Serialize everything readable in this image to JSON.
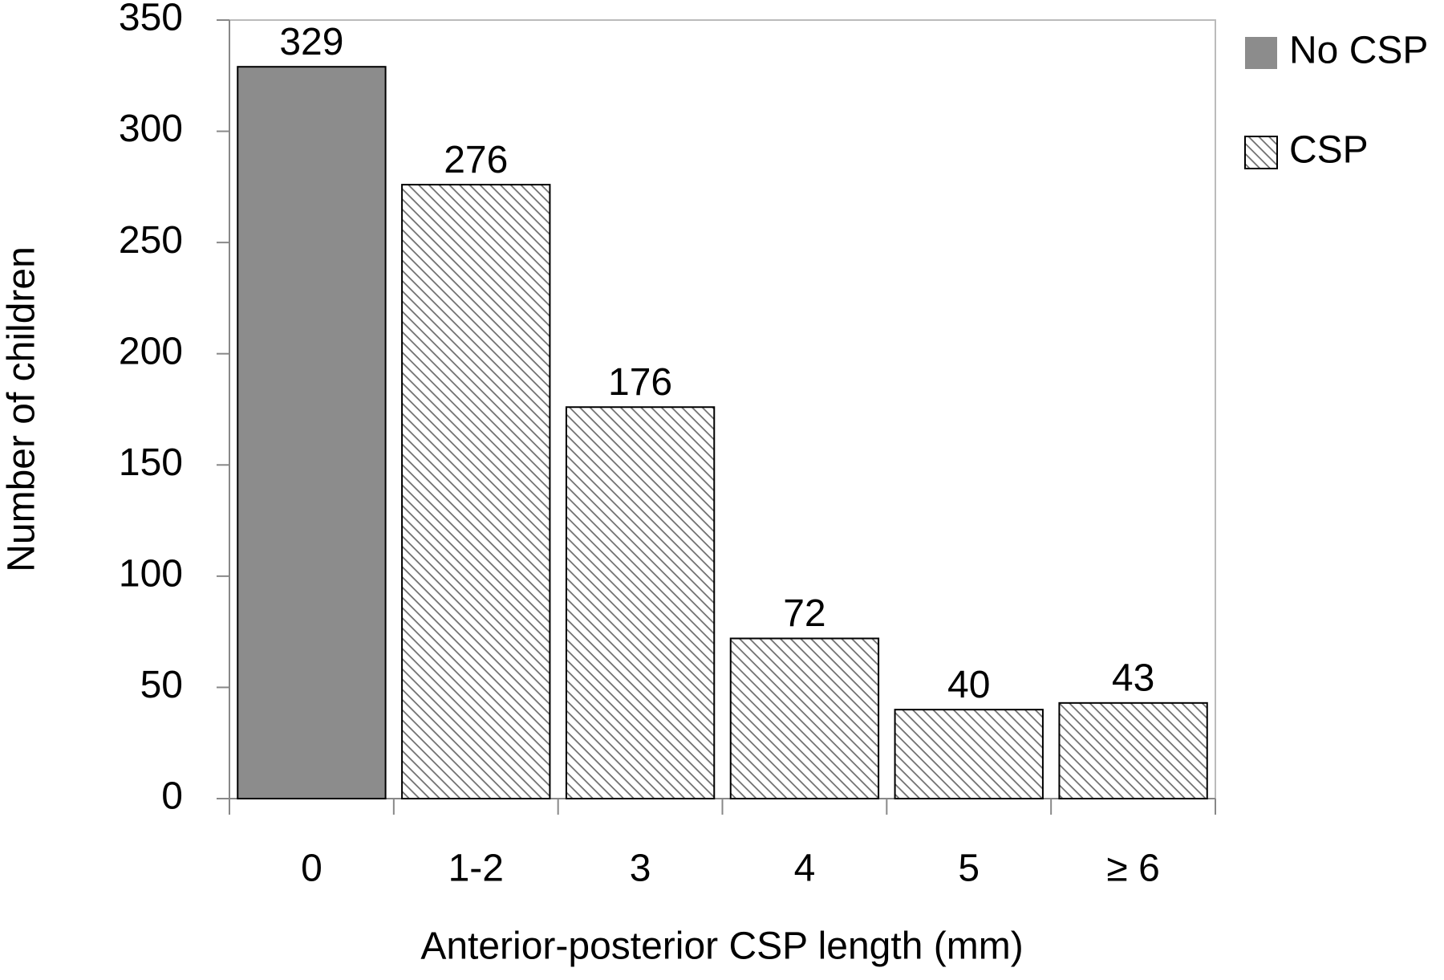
{
  "chart_data": {
    "type": "bar",
    "x_label": "Anterior-posterior CSP length (mm)",
    "y_label": "Number of children",
    "categories": [
      "0",
      "1-2",
      "3",
      "4",
      "5",
      "≥ 6"
    ],
    "series": [
      {
        "name": "No CSP",
        "color": "#8c8c8c",
        "pattern": "solid",
        "values": [
          329,
          null,
          null,
          null,
          null,
          null
        ]
      },
      {
        "name": "CSP",
        "color": "#6e6e6e",
        "pattern": "hatch",
        "values": [
          null,
          276,
          176,
          72,
          40,
          43
        ]
      }
    ],
    "ylim": [
      0,
      350
    ],
    "yticks": [
      0,
      50,
      100,
      150,
      200,
      250,
      300,
      350
    ],
    "grid": false,
    "legend": "right"
  }
}
